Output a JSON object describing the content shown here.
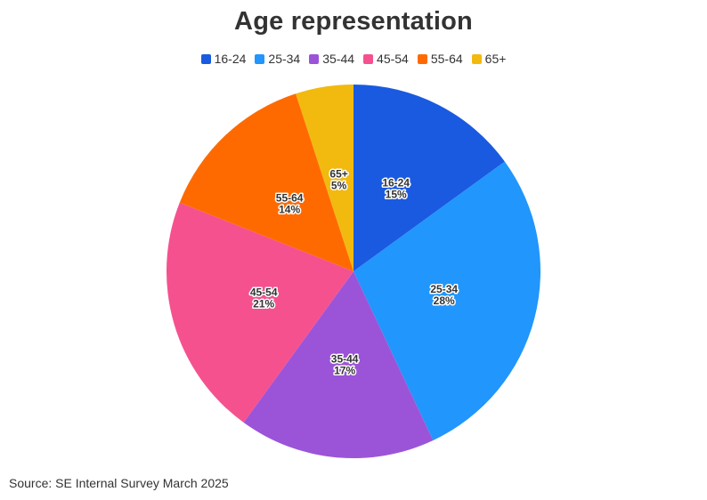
{
  "chart_data": {
    "type": "pie",
    "title": "Age representation",
    "categories": [
      "16-24",
      "25-34",
      "35-44",
      "45-54",
      "55-64",
      "65+"
    ],
    "values": [
      15,
      28,
      17,
      21,
      14,
      5
    ],
    "value_labels": [
      "15%",
      "28%",
      "17%",
      "21%",
      "14%",
      "5%"
    ],
    "colors": [
      "#1a5ae0",
      "#2196fc",
      "#9b54d8",
      "#f5518f",
      "#ff6a00",
      "#f2b90f"
    ],
    "legend_position": "top-center",
    "start_angle": "12 o'clock, clockwise",
    "source": "Source: SE Internal Survey March 2025"
  }
}
